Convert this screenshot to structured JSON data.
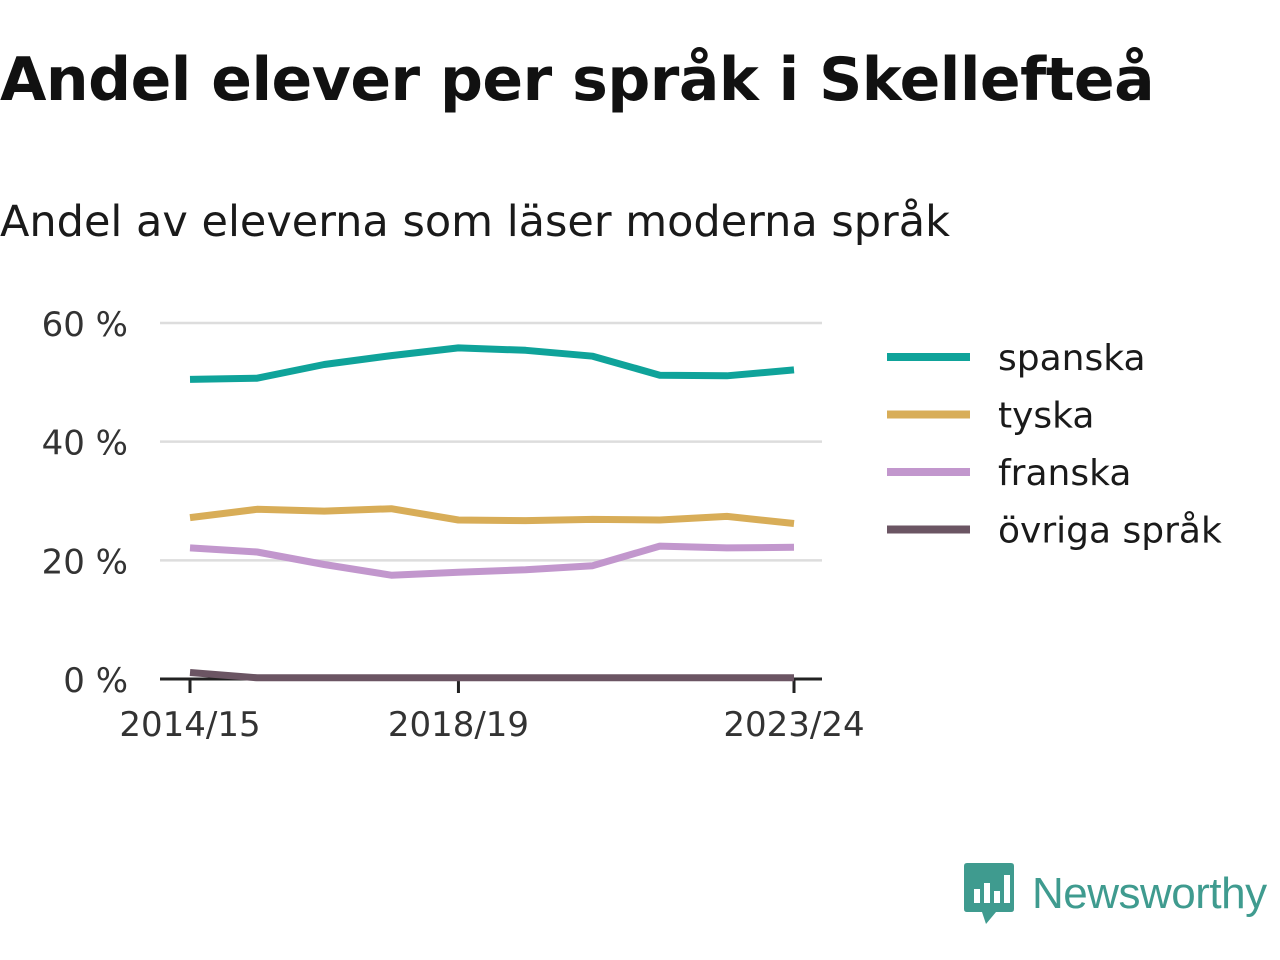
{
  "title": "Andel elever per språk i Skellefteå",
  "subtitle": "Andel av eleverna som läser moderna språk",
  "brand": {
    "name": "Newsworthy",
    "color": "#3f9b8f"
  },
  "chart_data": {
    "type": "line",
    "title": "Andel elever per språk i Skellefteå",
    "subtitle": "Andel av eleverna som läser moderna språk",
    "xlabel": "",
    "ylabel": "",
    "x": [
      "2014/15",
      "2015/16",
      "2016/17",
      "2017/18",
      "2018/19",
      "2019/20",
      "2020/21",
      "2021/22",
      "2022/23",
      "2023/24"
    ],
    "x_tick_labels": [
      "2014/15",
      "2018/19",
      "2023/24"
    ],
    "y_ticks": [
      0,
      20,
      40,
      60
    ],
    "y_tick_labels": [
      "0 %",
      "20 %",
      "40 %",
      "60 %"
    ],
    "ylim": [
      0,
      60
    ],
    "grid": true,
    "legend_position": "right",
    "series": [
      {
        "name": "spanska",
        "color": "#0fa39a",
        "values": [
          50.5,
          50.7,
          53.0,
          54.5,
          55.8,
          55.4,
          54.4,
          51.2,
          51.1,
          52.1
        ]
      },
      {
        "name": "tyska",
        "color": "#d8ad58",
        "values": [
          27.2,
          28.6,
          28.3,
          28.7,
          26.8,
          26.7,
          26.9,
          26.8,
          27.4,
          26.2
        ]
      },
      {
        "name": "franska",
        "color": "#c297cd",
        "values": [
          22.1,
          21.4,
          19.3,
          17.5,
          18.0,
          18.4,
          19.1,
          22.4,
          22.1,
          22.2
        ]
      },
      {
        "name": "övriga språk",
        "color": "#6b5563",
        "values": [
          1.1,
          0.2,
          0.2,
          0.2,
          0.2,
          0.2,
          0.2,
          0.2,
          0.2,
          0.2
        ]
      }
    ]
  }
}
